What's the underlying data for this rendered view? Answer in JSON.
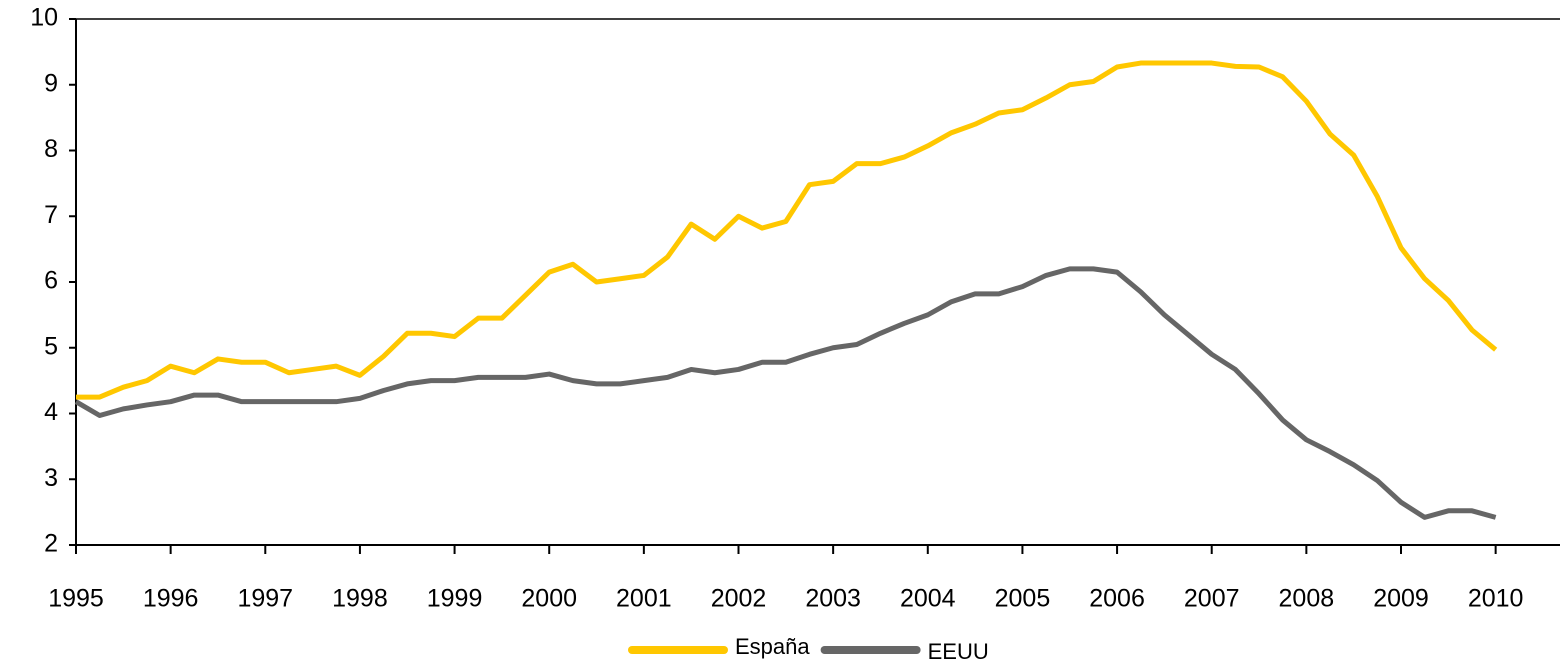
{
  "chart_data": {
    "type": "line",
    "x": [
      1995,
      1995.25,
      1995.5,
      1995.75,
      1996,
      1996.25,
      1996.5,
      1996.75,
      1997,
      1997.25,
      1997.5,
      1997.75,
      1998,
      1998.25,
      1998.5,
      1998.75,
      1999,
      1999.25,
      1999.5,
      1999.75,
      2000,
      2000.25,
      2000.5,
      2000.75,
      2001,
      2001.25,
      2001.5,
      2001.75,
      2002,
      2002.25,
      2002.5,
      2002.75,
      2003,
      2003.25,
      2003.5,
      2003.75,
      2004,
      2004.25,
      2004.5,
      2004.75,
      2005,
      2005.25,
      2005.5,
      2005.75,
      2006,
      2006.25,
      2006.5,
      2006.75,
      2007,
      2007.25,
      2007.5,
      2007.75,
      2008,
      2008.25,
      2008.5,
      2008.75,
      2009,
      2009.25,
      2009.5,
      2009.75,
      2010
    ],
    "series": [
      {
        "name": "España",
        "color": "#FFC700",
        "values": [
          4.25,
          4.25,
          4.4,
          4.5,
          4.72,
          4.62,
          4.83,
          4.78,
          4.78,
          4.62,
          4.67,
          4.72,
          4.58,
          4.87,
          5.22,
          5.22,
          5.17,
          5.45,
          5.45,
          5.8,
          6.15,
          6.27,
          6.0,
          6.05,
          6.1,
          6.38,
          6.88,
          6.65,
          7.0,
          6.82,
          6.92,
          7.48,
          7.53,
          7.8,
          7.8,
          7.9,
          8.07,
          8.27,
          8.4,
          8.57,
          8.62,
          8.8,
          9.0,
          9.05,
          9.27,
          9.33,
          9.33,
          9.33,
          9.33,
          9.28,
          9.27,
          9.12,
          8.75,
          8.25,
          7.93,
          7.3,
          6.52,
          6.05,
          5.72,
          5.27,
          4.97
        ]
      },
      {
        "name": "EEUU",
        "color": "#666666",
        "values": [
          4.18,
          3.97,
          4.07,
          4.13,
          4.18,
          4.28,
          4.28,
          4.18,
          4.18,
          4.18,
          4.18,
          4.18,
          4.23,
          4.35,
          4.45,
          4.5,
          4.5,
          4.55,
          4.55,
          4.55,
          4.6,
          4.5,
          4.45,
          4.45,
          4.5,
          4.55,
          4.67,
          4.62,
          4.67,
          4.78,
          4.78,
          4.9,
          5.0,
          5.05,
          5.22,
          5.37,
          5.5,
          5.7,
          5.82,
          5.82,
          5.93,
          6.1,
          6.2,
          6.2,
          6.15,
          5.85,
          5.5,
          5.2,
          4.9,
          4.67,
          4.3,
          3.9,
          3.6,
          3.42,
          3.22,
          2.98,
          2.65,
          2.42,
          2.52,
          2.52,
          2.42
        ]
      }
    ],
    "xlim": [
      1995,
      2010.68
    ],
    "xticks": [
      1995,
      1996,
      1997,
      1998,
      1999,
      2000,
      2001,
      2002,
      2003,
      2004,
      2005,
      2006,
      2007,
      2008,
      2009,
      2010
    ],
    "ylim": [
      2,
      10
    ],
    "yticks": [
      2,
      3,
      4,
      5,
      6,
      7,
      8,
      9,
      10
    ],
    "legend": "bottom"
  }
}
